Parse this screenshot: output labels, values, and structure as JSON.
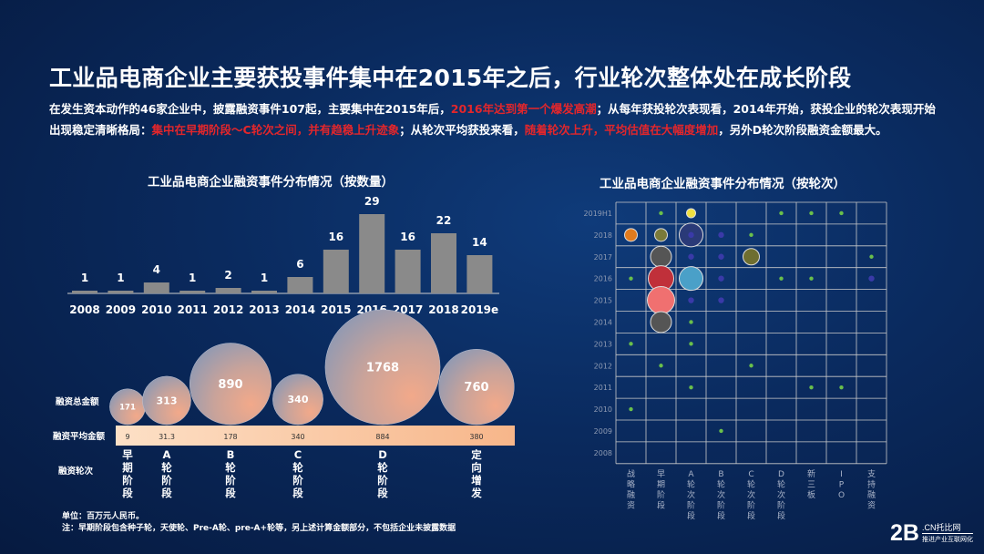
{
  "title": "工业品电商企业主要获投事件集中在2015年之后，行业轮次整体处在成长阶段",
  "intro": {
    "p1": "在发生资本动作的46家企业中，披露融资事件107起，主要集中在2015年后，",
    "h1": "2016年达到第一个爆发高潮",
    "p2": "；从每年获投轮次表现看，2014年开始，获投企业的轮次表现开始出现稳定清晰格局：",
    "h2": "集中在早期阶段～C轮次之间，并有趋稳上升迹象",
    "p3": "；从轮次平均获投来看，",
    "h3": "随着轮次上升，平均估值在大幅度增加",
    "p4": "，另外D轮次阶段融资金额最大。"
  },
  "colors": {
    "highlight": "#e3262b",
    "bar": "#8a8a8a",
    "strip": "#f7c09a",
    "grid": "#c9c9c9"
  },
  "chart_data": [
    {
      "type": "bar",
      "title": "工业品电商企业融资事件分布情况（按数量）",
      "categories": [
        "2008",
        "2009",
        "2010",
        "2011",
        "2012",
        "2013",
        "2014",
        "2015",
        "2016",
        "2017",
        "2018",
        "2019e"
      ],
      "values": [
        1,
        1,
        4,
        1,
        2,
        1,
        6,
        16,
        29,
        16,
        22,
        14
      ]
    },
    {
      "type": "bubble",
      "row_labels": [
        "融资总金额",
        "融资平均金额",
        "融资轮次"
      ],
      "categories": [
        "早期阶段",
        "A轮阶段",
        "B轮阶段",
        "C轮阶段",
        "D轮阶段",
        "定向增发"
      ],
      "total": [
        171,
        313,
        890,
        340,
        1768,
        760
      ],
      "average": [
        9,
        "31.3",
        178,
        340,
        884,
        380
      ]
    },
    {
      "type": "scatter",
      "title": "工业品电商企业融资事件分布情况（按轮次）",
      "x_categories": [
        "战略融资",
        "早期阶段",
        "A轮次阶段",
        "B轮次阶段",
        "C轮次阶段",
        "D轮次阶段",
        "新三板",
        "IPO",
        "支持融资"
      ],
      "y_categories": [
        "2008",
        "2009",
        "2010",
        "2011",
        "2012",
        "2013",
        "2014",
        "2015",
        "2016",
        "2017",
        "2018",
        "2019H1"
      ],
      "bubbles": [
        {
          "x": 0,
          "y": 10,
          "size": 2,
          "color": "#e07b1f"
        },
        {
          "x": 1,
          "y": 10,
          "size": 2,
          "color": "#7a7a3a"
        },
        {
          "x": 2,
          "y": 11,
          "size": 1,
          "color": "#f0e040"
        },
        {
          "x": 2,
          "y": 10,
          "size": 5,
          "color": "#2a3a78"
        },
        {
          "x": 1,
          "y": 9,
          "size": 4,
          "color": "#555555"
        },
        {
          "x": 4,
          "y": 9,
          "size": 3,
          "color": "#6e6e30"
        },
        {
          "x": 1,
          "y": 8,
          "size": 6,
          "color": "#c0303a"
        },
        {
          "x": 2,
          "y": 8,
          "size": 5,
          "color": "#4aa0c8"
        },
        {
          "x": 1,
          "y": 7,
          "size": 7,
          "color": "#f07070"
        },
        {
          "x": 1,
          "y": 6,
          "size": 4,
          "color": "#555555"
        }
      ]
    }
  ],
  "notes": {
    "unit": "单位：百万元人民币。",
    "note": "注：早期阶段包含种子轮，天使轮、Pre-A轮、pre-A+轮等，另上述计算金额部分，不包括企业未披露数据"
  },
  "logo": {
    "big": "2B",
    "top": ".CN托比网",
    "sub": "推进产业互联网化"
  }
}
